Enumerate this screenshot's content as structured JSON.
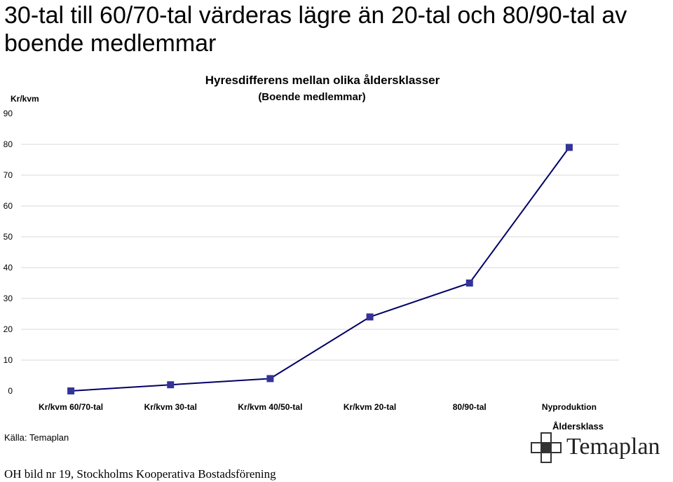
{
  "slide": {
    "title_line1": "30-tal till 60/70-tal värderas lägre än 20-tal och 80/90-tal av",
    "title_line2": "boende medlemmar",
    "source": "Källa: Temaplan",
    "footer": "OH bild nr 19, Stockholms Kooperativa Bostadsförening",
    "logo_text": "Temaplan"
  },
  "chart_data": {
    "type": "line",
    "title": "Hyresdifferens mellan olika åldersklasser",
    "subtitle": "(Boende medlemmar)",
    "ylabel": "Kr/kvm",
    "xlabel": "Åldersklass",
    "categories": [
      "Kr/kvm 60/70-tal",
      "Kr/kvm 30-tal",
      "Kr/kvm 40/50-tal",
      "Kr/kvm 20-tal",
      "80/90-tal",
      "Nyproduktion"
    ],
    "values": [
      0,
      2,
      4,
      24,
      35,
      79
    ],
    "ylim": [
      0,
      90
    ],
    "yticks": [
      0,
      10,
      20,
      30,
      40,
      50,
      60,
      70,
      80,
      90
    ],
    "grid": true,
    "line_color": "#000066",
    "marker_color": "#333399"
  }
}
